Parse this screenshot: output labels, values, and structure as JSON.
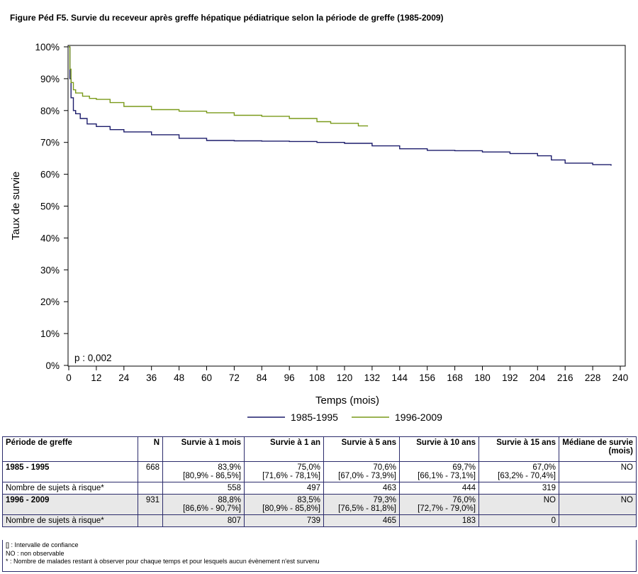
{
  "figure_title": "Figure Péd F5. Survie du receveur après greffe hépatique pédiatrique selon la période de greffe (1985-2009)",
  "chart_data": {
    "type": "line",
    "title": "Figure Péd F5. Survie du receveur après greffe hépatique pédiatrique selon la période de greffe (1985-2009)",
    "xlabel": "Temps (mois)",
    "ylabel": "Taux de survie",
    "xlim": [
      0,
      240
    ],
    "ylim": [
      0,
      100
    ],
    "x_ticks": [
      0,
      12,
      24,
      36,
      48,
      60,
      72,
      84,
      96,
      108,
      120,
      132,
      144,
      156,
      168,
      180,
      192,
      204,
      216,
      228,
      240
    ],
    "y_ticks": [
      0,
      10,
      20,
      30,
      40,
      50,
      60,
      70,
      80,
      90,
      100
    ],
    "y_tick_labels": [
      "0%",
      "10%",
      "20%",
      "30%",
      "40%",
      "50%",
      "60%",
      "70%",
      "80%",
      "90%",
      "100%"
    ],
    "grid": false,
    "legend_position": "bottom",
    "annotation": "p : 0,002",
    "series": [
      {
        "name": "1985-1995",
        "color": "#1c1c6b",
        "x": [
          0,
          0.5,
          1,
          2,
          3,
          5,
          8,
          12,
          18,
          24,
          36,
          48,
          60,
          72,
          84,
          96,
          108,
          120,
          132,
          144,
          156,
          168,
          180,
          192,
          204,
          210,
          216,
          228,
          236
        ],
        "y": [
          100,
          90,
          84,
          80,
          79,
          77.5,
          75.8,
          75,
          74,
          73.3,
          72.4,
          71.3,
          70.6,
          70.5,
          70.4,
          70.3,
          70.0,
          69.7,
          68.9,
          68.0,
          67.5,
          67.4,
          67.0,
          66.5,
          65.8,
          64.5,
          63.5,
          63.0,
          62.7
        ]
      },
      {
        "name": "1996-2009",
        "color": "#7a9a1a",
        "x": [
          0,
          0.5,
          1,
          2,
          3,
          6,
          9,
          12,
          18,
          24,
          36,
          48,
          60,
          72,
          84,
          96,
          108,
          114,
          120,
          126,
          130
        ],
        "y": [
          100,
          93,
          88.8,
          86.5,
          85.5,
          84.5,
          83.8,
          83.5,
          82.5,
          81.3,
          80.3,
          79.8,
          79.3,
          78.5,
          78.2,
          77.5,
          76.5,
          76.0,
          76.0,
          75.2,
          75.0
        ]
      }
    ]
  },
  "table": {
    "headers": [
      "Période de greffe",
      "N",
      "Survie à 1 mois",
      "Survie à 1 an",
      "Survie à 5 ans",
      "Survie à 10 ans",
      "Survie à 15 ans",
      "Médiane de survie (mois)"
    ],
    "rows": [
      {
        "label": "1985 - 1995",
        "n": "668",
        "values": [
          "83,9%",
          "75,0%",
          "70,6%",
          "69,7%",
          "67,0%",
          "NO"
        ],
        "ci": [
          "[80,9% - 86,5%]",
          "[71,6% - 78,1%]",
          "[67,0% - 73,9%]",
          "[66,1% - 73,1%]",
          "[63,2% - 70,4%]",
          ""
        ]
      },
      {
        "label": "Nombre de sujets à risque*",
        "n": "",
        "values": [
          "558",
          "497",
          "463",
          "444",
          "319",
          ""
        ]
      },
      {
        "label": "1996 - 2009",
        "n": "931",
        "values": [
          "88,8%",
          "83,5%",
          "79,3%",
          "76,0%",
          "NO",
          "NO"
        ],
        "ci": [
          "[86,6% - 90,7%]",
          "[80,9% - 85,8%]",
          "[76,5% - 81,8%]",
          "[72,7% - 79,0%]",
          "",
          ""
        ]
      },
      {
        "label": "Nombre de sujets à risque*",
        "n": "",
        "values": [
          "807",
          "739",
          "465",
          "183",
          "0",
          ""
        ]
      }
    ]
  },
  "notes": [
    "[] : Intervalle de confiance",
    "NO : non observable",
    "* : Nombre de malades restant à observer pour chaque temps et pour lesquels aucun évènement n'est survenu"
  ]
}
